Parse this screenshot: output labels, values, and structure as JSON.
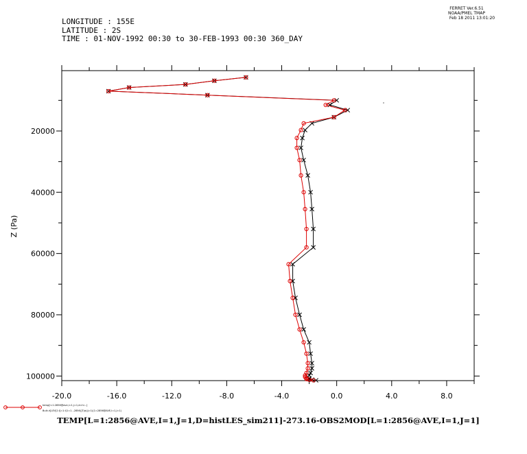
{
  "header": {
    "ferret_version": "FERRET  Ver.6.51",
    "ferret_org": "NOAA/PMEL TMAP",
    "ferret_date": "Feb 18 2011 13:01:20",
    "lines": [
      "LONGITUDE : 155E",
      "LATITUDE : 2S",
      "TIME : 01-NOV-1992 00:30 to 30-FEB-1993 00:30 360_DAY"
    ]
  },
  "bottom_title": "TEMP[L=1:2856@AVE,I=1,J=1,D=histLES_sim211]-273.16-OBS2MOD[L=1:2856@AVE,I=1,J=1]",
  "legend": {
    "line1": "temp[l=1:2856@ave,i=1,j=1,d=hi…]",
    "line2": "Bulk.rl[LEV[1:I]=1:I(1=1…2856)]T(a)(j=1)(1=2856@AVE,I=1,J=1)"
  },
  "colors": {
    "series_red": "#dd0000",
    "series_black": "#000000",
    "axis": "#000000"
  },
  "chart_data": {
    "type": "line",
    "orientation": "vertical-profile",
    "xlabel": "",
    "ylabel": "Z (Pa)",
    "xlim": [
      -20,
      10
    ],
    "ylim": [
      101500,
      300
    ],
    "x_ticks": [
      -20,
      -16,
      -12,
      -8,
      -4,
      0,
      4,
      8
    ],
    "x_tick_labels": [
      "-20.0",
      "-16.0",
      "-12.0",
      "-8.0",
      "-4.0",
      "0.0",
      "4.0",
      "8.0"
    ],
    "y_ticks": [
      20000,
      40000,
      60000,
      80000,
      100000
    ],
    "y_tick_labels": [
      "20000",
      "40000",
      "60000",
      "80000",
      "100000"
    ],
    "series": [
      {
        "marker": "circle",
        "color": "#dd0000",
        "x": [
          -6.6,
          -8.9,
          -11.0,
          -15.1,
          -16.6,
          -9.4,
          -0.2,
          -0.8,
          0.6,
          -0.2,
          -2.4,
          -2.6,
          -2.9,
          -2.9,
          -2.7,
          -2.6,
          -2.4,
          -2.3,
          -2.2,
          -2.2,
          -3.5,
          -3.4,
          -3.2,
          -3.0,
          -2.7,
          -2.4,
          -2.2,
          -2.1,
          -2.1,
          -2.2,
          -2.3,
          -2.3,
          -2.2,
          -2.2,
          -2.0,
          -1.7
        ],
        "y": [
          2500,
          3600,
          4800,
          5800,
          7000,
          8300,
          10000,
          11500,
          13200,
          15500,
          17500,
          19700,
          22300,
          25500,
          29500,
          34500,
          40000,
          45500,
          52000,
          58000,
          63500,
          69000,
          74500,
          80000,
          84800,
          89000,
          92700,
          95800,
          97500,
          99000,
          99800,
          100300,
          100700,
          101000,
          101200,
          101400
        ]
      },
      {
        "marker": "cross",
        "color": "#000000",
        "x": [
          -6.6,
          -8.9,
          -11.0,
          -15.1,
          -16.6,
          -9.4,
          0.0,
          -0.5,
          0.8,
          -0.2,
          -1.8,
          -2.3,
          -2.5,
          -2.6,
          -2.4,
          -2.1,
          -1.9,
          -1.8,
          -1.7,
          -1.7,
          -3.2,
          -3.2,
          -3.0,
          -2.7,
          -2.4,
          -2.0,
          -1.9,
          -1.8,
          -1.8,
          -1.9,
          -2.0,
          -2.1,
          -2.0,
          -2.0,
          -1.8,
          -1.5
        ],
        "y": [
          2500,
          3600,
          4800,
          5800,
          7000,
          8300,
          10000,
          11500,
          13200,
          15500,
          17500,
          19700,
          22300,
          25500,
          29500,
          34500,
          40000,
          45500,
          52000,
          58000,
          63500,
          69000,
          74500,
          80000,
          84800,
          89000,
          92700,
          95800,
          97500,
          99000,
          99800,
          100300,
          100700,
          101000,
          101200,
          101400
        ]
      }
    ]
  }
}
